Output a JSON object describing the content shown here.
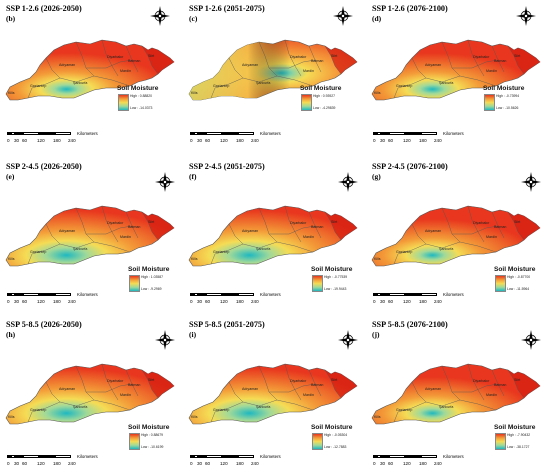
{
  "legend_title": "Soil Moisture",
  "scale": {
    "ticks": [
      "0",
      "30",
      "60",
      "120",
      "180",
      "240"
    ],
    "unit": "Kilometers"
  },
  "places": [
    "Siirt",
    "Diyarbakır",
    "Batman",
    "Adıyaman",
    "Mardin",
    "Şanlıurfa",
    "Gaziantep",
    "Kilis"
  ],
  "colors": {
    "high": "#e8371e",
    "mid": "#f5dc55",
    "low": "#1fb8c0"
  },
  "panels": [
    {
      "title": "SSP 1-2.6 (2026-2050)",
      "label": "(b)",
      "high": "High : 0.88820",
      "low": "Low : -14.0373",
      "pattern": "center-wet"
    },
    {
      "title": "SSP 1-2.6 (2051-2075)",
      "label": "(c)",
      "high": "High : 0.93927",
      "low": "Low : -4.29839",
      "pattern": "east-wet"
    },
    {
      "title": "SSP 1-2.6 (2076-2100)",
      "label": "(d)",
      "high": "High : -0.73994",
      "low": "Low : -10.5626",
      "pattern": "center-wet"
    },
    {
      "title": "SSP 2-4.5 (2026-2050)",
      "label": "(e)",
      "high": "High : 1.03587",
      "low": "Low : -9.2969",
      "pattern": "center-wide"
    },
    {
      "title": "SSP 2-4.5 (2051-2075)",
      "label": "(f)",
      "high": "High : -0.77539",
      "low": "Low : -19.9443",
      "pattern": "center-wide"
    },
    {
      "title": "SSP 2-4.5 (2076-2100)",
      "label": "(g)",
      "high": "High : -0.87700",
      "low": "Low : -11.5964",
      "pattern": "center-wet"
    },
    {
      "title": "SSP 5-8.5 (2026-2050)",
      "label": "(h)",
      "high": "High : 0.88679",
      "low": "Low : -10.6199",
      "pattern": "center-wide"
    },
    {
      "title": "SSP 5-8.5 (2051-2075)",
      "label": "(i)",
      "high": "High : -0.05304",
      "low": "Low : -12.7883",
      "pattern": "center-wide"
    },
    {
      "title": "SSP 5-8.5 (2076-2100)",
      "label": "(j)",
      "high": "High : -7.90432",
      "low": "Low : -38.1727",
      "pattern": "center-wet"
    }
  ]
}
